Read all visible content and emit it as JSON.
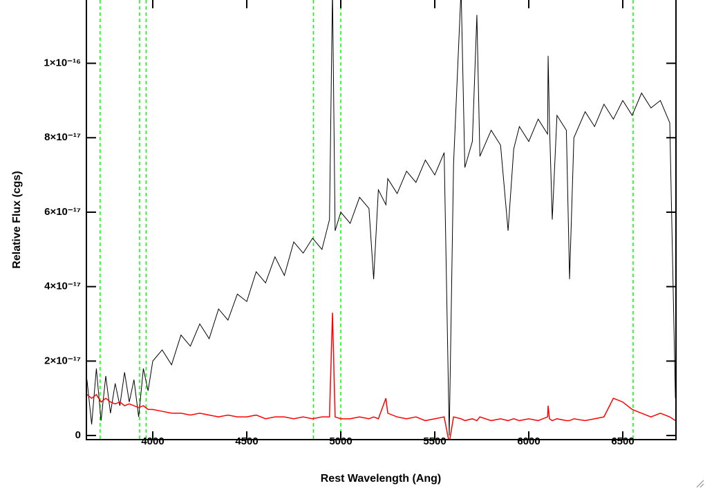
{
  "chart_data": {
    "type": "line",
    "xlabel": "Rest Wavelength (Ang)",
    "ylabel": "Relative Flux (cgs)",
    "x": [
      3650,
      3675,
      3700,
      3725,
      3750,
      3775,
      3800,
      3825,
      3850,
      3875,
      3900,
      3925,
      3950,
      3975,
      4000,
      4050,
      4100,
      4150,
      4200,
      4250,
      4300,
      4350,
      4400,
      4450,
      4500,
      4550,
      4600,
      4650,
      4700,
      4750,
      4800,
      4850,
      4900,
      4940,
      4956,
      4970,
      5000,
      5050,
      5100,
      5150,
      5175,
      5200,
      5240,
      5250,
      5300,
      5350,
      5400,
      5450,
      5500,
      5550,
      5577,
      5600,
      5640,
      5660,
      5700,
      5724,
      5740,
      5800,
      5850,
      5890,
      5920,
      5950,
      6000,
      6050,
      6100,
      6103,
      6110,
      6125,
      6150,
      6200,
      6217,
      6240,
      6300,
      6350,
      6400,
      6450,
      6500,
      6550,
      6600,
      6650,
      6700,
      6750,
      6780
    ],
    "series": [
      {
        "color": "#000000",
        "values": [
          1.5e-17,
          3e-18,
          1.8e-17,
          4e-18,
          1.6e-17,
          6e-18,
          1.4e-17,
          8e-18,
          1.7e-17,
          9e-18,
          1.5e-17,
          5e-18,
          1.8e-17,
          1.2e-17,
          2e-17,
          2.3e-17,
          1.9e-17,
          2.7e-17,
          2.4e-17,
          3e-17,
          2.6e-17,
          3.4e-17,
          3.1e-17,
          3.8e-17,
          3.6e-17,
          4.4e-17,
          4.1e-17,
          4.8e-17,
          4.3e-17,
          5.2e-17,
          4.9e-17,
          5.3e-17,
          5e-17,
          5.8e-17,
          1.2e-16,
          5.5e-17,
          6e-17,
          5.7e-17,
          6.4e-17,
          6.1e-17,
          4.2e-17,
          6.6e-17,
          6.2e-17,
          6.9e-17,
          6.5e-17,
          7.1e-17,
          6.8e-17,
          7.4e-17,
          7e-17,
          7.6e-17,
          0,
          7.3e-17,
          1.2e-16,
          7.2e-17,
          7.9e-17,
          1.13e-16,
          7.5e-17,
          8.2e-17,
          7.8e-17,
          5.5e-17,
          7.7e-17,
          8.3e-17,
          7.9e-17,
          8.5e-17,
          8.1e-17,
          1.02e-16,
          8.4e-17,
          5.8e-17,
          8.6e-17,
          8.2e-17,
          4.2e-17,
          8e-17,
          8.7e-17,
          8.3e-17,
          8.9e-17,
          8.5e-17,
          9e-17,
          8.6e-17,
          9.2e-17,
          8.8e-17,
          9e-17,
          8.4e-17,
          1e-17
        ]
      },
      {
        "color": "#ff0000",
        "values": [
          1.1e-17,
          1e-17,
          1.1e-17,
          9e-18,
          1e-17,
          9e-18,
          8.5e-18,
          9e-18,
          8e-18,
          8.5e-18,
          8e-18,
          7.5e-18,
          8e-18,
          7e-18,
          7e-18,
          6.5e-18,
          6e-18,
          6e-18,
          5.5e-18,
          6e-18,
          5.5e-18,
          5e-18,
          5.5e-18,
          5e-18,
          5e-18,
          5.5e-18,
          4.5e-18,
          5e-18,
          5e-18,
          4.5e-18,
          5e-18,
          4.5e-18,
          5e-18,
          5e-18,
          3.3e-17,
          5e-18,
          4.5e-18,
          4.5e-18,
          5e-18,
          4.5e-18,
          5e-18,
          4.5e-18,
          1e-17,
          6e-18,
          5e-18,
          4.5e-18,
          5e-18,
          4e-18,
          4.5e-18,
          5e-18,
          -2e-18,
          5e-18,
          4.5e-18,
          4e-18,
          4.5e-18,
          4e-18,
          5e-18,
          4e-18,
          4.5e-18,
          4e-18,
          4.5e-18,
          4e-18,
          4.5e-18,
          4e-18,
          5e-18,
          8e-18,
          4.5e-18,
          4e-18,
          4.5e-18,
          4e-18,
          4e-18,
          4.5e-18,
          4e-18,
          4.5e-18,
          5e-18,
          1e-17,
          9e-18,
          7e-18,
          6e-18,
          5e-18,
          6e-18,
          5e-18,
          4e-18
        ]
      }
    ],
    "vlines": {
      "color": "#00ff00",
      "x": [
        3720,
        3930,
        3965,
        4855,
        5000,
        6555
      ]
    },
    "xlim": [
      3647,
      6783
    ],
    "ylim": [
      -1.1e-18,
      1.17e-16
    ],
    "xticks": [
      4000,
      4500,
      5000,
      5500,
      6000,
      6500
    ],
    "yticks": [
      0,
      {
        "value": 2e-17,
        "label": "2×10⁻¹⁷"
      },
      {
        "value": 4e-17,
        "label": "4×10⁻¹⁷"
      },
      {
        "value": 6e-17,
        "label": "6×10⁻¹⁷"
      },
      {
        "value": 8e-17,
        "label": "8×10⁻¹⁷"
      },
      {
        "value": 1e-16,
        "label": "1×10⁻¹⁶"
      }
    ]
  }
}
